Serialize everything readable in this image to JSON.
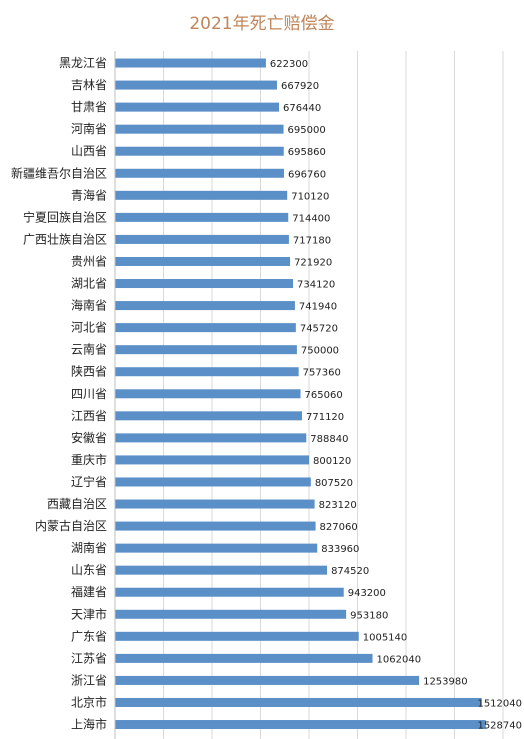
{
  "chart_data": {
    "type": "bar",
    "orientation": "horizontal",
    "title": "2021年死亡赔偿金",
    "xlabel": "",
    "ylabel": "",
    "xlim": [
      0,
      1600000
    ],
    "grid": true,
    "bar_color": "#5b8fc7",
    "title_color": "#c0855a",
    "categories": [
      "黑龙江省",
      "吉林省",
      "甘肃省",
      "河南省",
      "山西省",
      "新疆维吾尔自治区",
      "青海省",
      "宁夏回族自治区",
      "广西壮族自治区",
      "贵州省",
      "湖北省",
      "海南省",
      "河北省",
      "云南省",
      "陕西省",
      "四川省",
      "江西省",
      "安徽省",
      "重庆市",
      "辽宁省",
      "西藏自治区",
      "内蒙古自治区",
      "湖南省",
      "山东省",
      "福建省",
      "天津市",
      "广东省",
      "江苏省",
      "浙江省",
      "北京市",
      "上海市"
    ],
    "values": [
      622300,
      667920,
      676440,
      695000,
      695860,
      696760,
      710120,
      714400,
      717180,
      721920,
      734120,
      741940,
      745720,
      750000,
      757360,
      765060,
      771120,
      788840,
      800120,
      807520,
      823120,
      827060,
      833960,
      874520,
      943200,
      953180,
      1005140,
      1062040,
      1253980,
      1512040,
      1528740
    ]
  }
}
